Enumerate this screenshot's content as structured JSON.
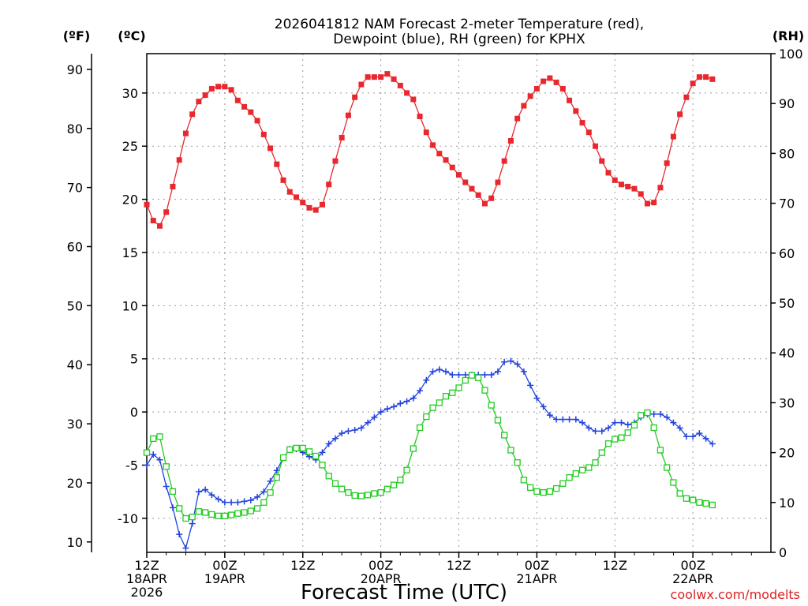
{
  "chart_data": {
    "type": "line",
    "title": "2026041812 NAM Forecast 2-meter Temperature (red),",
    "subtitle": "Dewpoint (blue), RH (green) for KPHX",
    "xlabel": "Forecast Time (UTC)",
    "credit": "coolwx.com/modelts",
    "units": {
      "fahrenheit": "(ºF)",
      "celsius": "(ºC)",
      "rh": "(RH)"
    },
    "grid": true,
    "x_range_hours": [
      0,
      96
    ],
    "x_ticks": [
      {
        "h": 0,
        "line1": "12Z",
        "line2": "18APR",
        "line3": "2026"
      },
      {
        "h": 12,
        "line1": "00Z",
        "line2": "19APR",
        "line3": ""
      },
      {
        "h": 24,
        "line1": "12Z",
        "line2": "",
        "line3": ""
      },
      {
        "h": 36,
        "line1": "00Z",
        "line2": "20APR",
        "line3": ""
      },
      {
        "h": 48,
        "line1": "12Z",
        "line2": "",
        "line3": ""
      },
      {
        "h": 60,
        "line1": "00Z",
        "line2": "21APR",
        "line3": ""
      },
      {
        "h": 72,
        "line1": "12Z",
        "line2": "",
        "line3": ""
      },
      {
        "h": 84,
        "line1": "00Z",
        "line2": "22APR",
        "line3": ""
      }
    ],
    "celsius_axis": {
      "range": [
        -13.2,
        33.7
      ],
      "ticks": [
        "-10",
        "-5",
        "0",
        "5",
        "10",
        "15",
        "20",
        "25",
        "30"
      ]
    },
    "fahrenheit_axis": {
      "ticks": [
        "10",
        "20",
        "30",
        "40",
        "50",
        "60",
        "70",
        "80",
        "90"
      ]
    },
    "rh_axis": {
      "range": [
        0,
        100
      ],
      "ticks": [
        "0",
        "10",
        "20",
        "30",
        "40",
        "50",
        "60",
        "70",
        "80",
        "90",
        "100"
      ]
    },
    "series": [
      {
        "name": "Temperature",
        "units": "°C",
        "color": "#e8282e",
        "marker": "filled-square",
        "step_hours": 1,
        "values": [
          19.5,
          18.0,
          17.5,
          18.8,
          21.2,
          23.7,
          26.2,
          28.0,
          29.2,
          29.8,
          30.4,
          30.6,
          30.6,
          30.3,
          29.3,
          28.7,
          28.2,
          27.4,
          26.1,
          24.8,
          23.3,
          21.8,
          20.7,
          20.2,
          19.7,
          19.2,
          19.0,
          19.5,
          21.4,
          23.6,
          25.8,
          27.9,
          29.6,
          30.8,
          31.5,
          31.5,
          31.5,
          31.8,
          31.3,
          30.7,
          30.0,
          29.4,
          27.8,
          26.3,
          25.1,
          24.3,
          23.7,
          23.0,
          22.3,
          21.6,
          21.0,
          20.4,
          19.6,
          20.1,
          21.6,
          23.6,
          25.5,
          27.6,
          28.8,
          29.7,
          30.4,
          31.1,
          31.4,
          31.0,
          30.4,
          29.3,
          28.3,
          27.2,
          26.3,
          25.0,
          23.6,
          22.5,
          21.8,
          21.4,
          21.2,
          21.0,
          20.5,
          19.6,
          19.7,
          21.1,
          23.4,
          25.9,
          28.0,
          29.6,
          30.9,
          31.5,
          31.5,
          31.3
        ]
      },
      {
        "name": "Dewpoint",
        "units": "°C",
        "color": "#2244dd",
        "marker": "plus",
        "step_hours": 1,
        "values": [
          -5.0,
          -4.0,
          -4.5,
          -7.0,
          -9.0,
          -11.5,
          -12.8,
          -10.5,
          -7.5,
          -7.3,
          -7.8,
          -8.2,
          -8.5,
          -8.5,
          -8.5,
          -8.4,
          -8.3,
          -8.0,
          -7.5,
          -6.5,
          -5.5,
          -4.3,
          -3.5,
          -3.5,
          -3.8,
          -4.2,
          -4.5,
          -3.8,
          -3.0,
          -2.5,
          -2.0,
          -1.8,
          -1.7,
          -1.5,
          -1.0,
          -0.5,
          0.0,
          0.3,
          0.5,
          0.8,
          1.0,
          1.3,
          2.0,
          3.0,
          3.8,
          4.0,
          3.8,
          3.5,
          3.5,
          3.5,
          3.5,
          3.5,
          3.5,
          3.5,
          3.8,
          4.7,
          4.8,
          4.5,
          3.8,
          2.5,
          1.3,
          0.5,
          -0.3,
          -0.7,
          -0.7,
          -0.7,
          -0.7,
          -1.0,
          -1.5,
          -1.8,
          -1.8,
          -1.5,
          -1.0,
          -1.0,
          -1.2,
          -1.0,
          -0.5,
          -0.2,
          -0.2,
          -0.2,
          -0.5,
          -1.0,
          -1.5,
          -2.3,
          -2.3,
          -2.0,
          -2.5,
          -3.0
        ]
      },
      {
        "name": "RH",
        "units": "%",
        "color": "#22cc22",
        "marker": "open-square",
        "step_hours": 1,
        "values": [
          20.0,
          22.8,
          23.2,
          17.2,
          12.2,
          8.8,
          6.8,
          7.1,
          8.2,
          8.0,
          7.6,
          7.3,
          7.3,
          7.5,
          7.8,
          8.0,
          8.3,
          8.8,
          10.0,
          12.0,
          15.0,
          19.0,
          20.6,
          20.9,
          20.9,
          20.2,
          19.3,
          17.5,
          15.3,
          13.8,
          12.7,
          12.0,
          11.4,
          11.3,
          11.5,
          11.8,
          12.0,
          12.7,
          13.5,
          14.5,
          16.5,
          20.8,
          25.0,
          27.2,
          29.0,
          30.0,
          31.3,
          32.0,
          33.0,
          34.5,
          35.5,
          35.0,
          32.5,
          29.5,
          26.5,
          23.5,
          20.5,
          18.0,
          14.5,
          13.0,
          12.2,
          12.0,
          12.2,
          12.8,
          13.8,
          15.0,
          15.8,
          16.5,
          17.0,
          18.0,
          20.0,
          21.8,
          22.7,
          23.0,
          24.0,
          25.5,
          27.5,
          28.0,
          25.0,
          20.5,
          17.0,
          14.0,
          11.8,
          10.8,
          10.5,
          10.0,
          9.8,
          9.5
        ]
      }
    ]
  }
}
